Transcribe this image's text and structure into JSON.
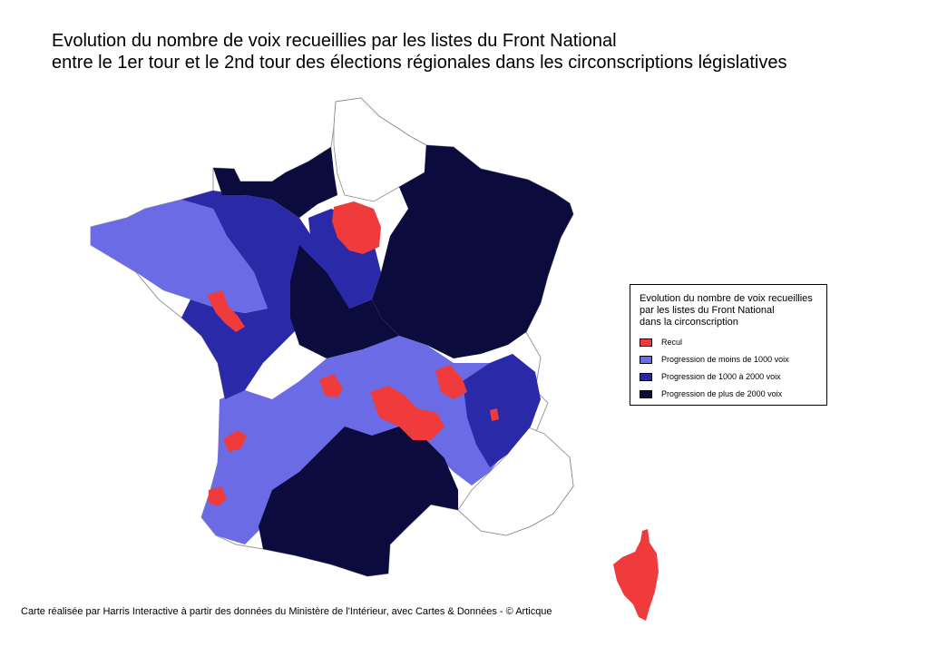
{
  "title": {
    "line1": "Evolution du nombre de voix recueillies par les listes du Front National",
    "line2": "entre le 1er tour et le 2nd tour des élections régionales dans les circonscriptions législatives"
  },
  "legend": {
    "title_line1": "Evolution du nombre de voix recueillies",
    "title_line2": "par les listes du Front National",
    "title_line3": "dans la circonscription",
    "items": [
      {
        "label": "Recul",
        "color": "#ef3b3b"
      },
      {
        "label": "Progression de moins de 1000 voix",
        "color": "#6b6be6"
      },
      {
        "label": "Progression de 1000 à 2000 voix",
        "color": "#2a2aa8"
      },
      {
        "label": "Progression de plus de 2000 voix",
        "color": "#0b0b3e"
      }
    ]
  },
  "source": "Carte réalisée par Harris Interactive à partir des données du Ministère de l'Intérieur, avec Cartes & Données - © Articque",
  "colors": {
    "no_data": "#ffffff",
    "border": "#9a9a9a"
  }
}
